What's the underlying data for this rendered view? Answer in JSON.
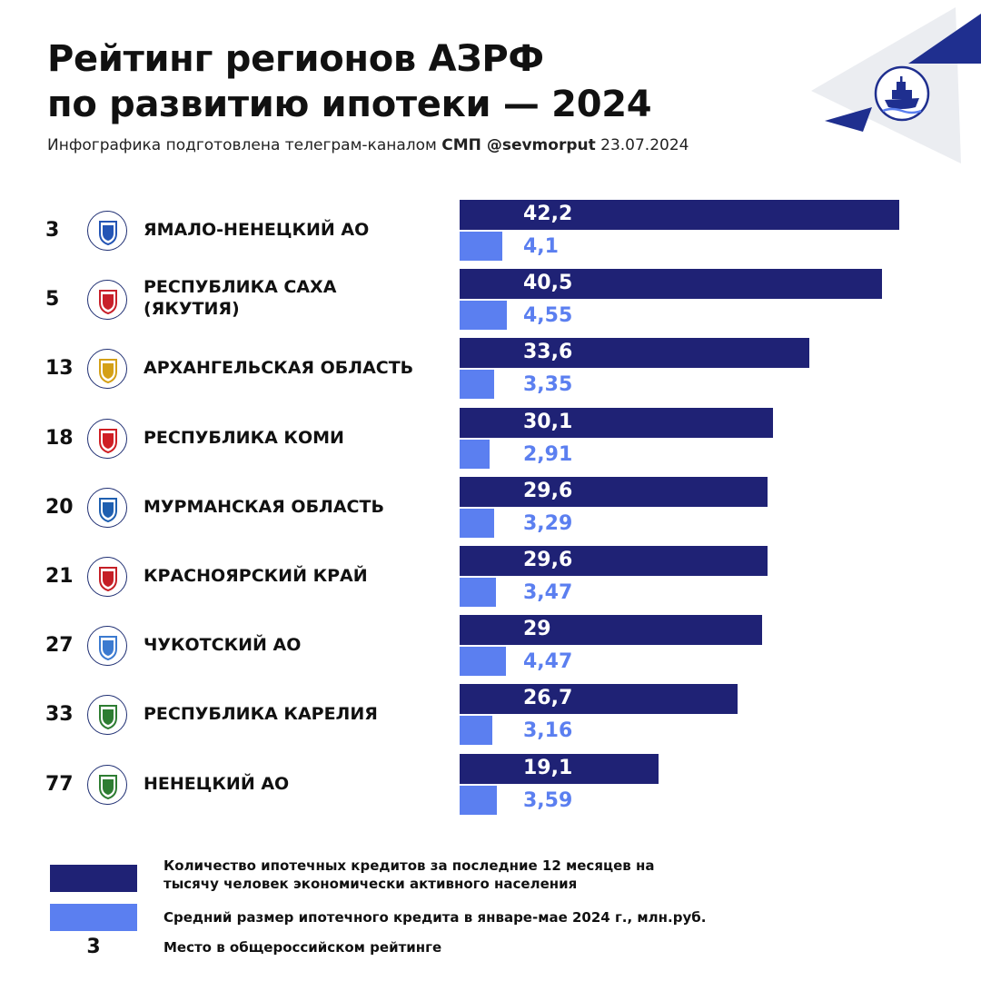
{
  "header": {
    "title_lines": [
      "Рейтинг регионов АЗРФ",
      "по развитию ипотеки — 2024"
    ],
    "subtitle_prefix": "Инфографика подготовлена телеграм-каналом",
    "subtitle_channel": "СМП @sevmorput",
    "subtitle_date": "23.07.2024"
  },
  "logo": {
    "icon": "icebreaker-ship-icon"
  },
  "colors": {
    "dark_bar": "#1f2275",
    "light_bar": "#5b7ff0",
    "accent_triangle": "#1f2f8f",
    "grey_triangle": "#ebedf1"
  },
  "chart_data": {
    "type": "bar",
    "orientation": "horizontal",
    "categories": [
      "ЯМАЛО-НЕНЕЦКИЙ АО",
      "РЕСПУБЛИКА САХА (ЯКУТИЯ)",
      "АРХАНГЕЛЬСКАЯ ОБЛАСТЬ",
      "РЕСПУБЛИКА КОМИ",
      "МУРМАНСКАЯ ОБЛАСТЬ",
      "КРАСНОЯРСКИЙ КРАЙ",
      "ЧУКОТСКИЙ АО",
      "РЕСПУБЛИКА КАРЕЛИЯ",
      "НЕНЕЦКИЙ АО"
    ],
    "category_lines": [
      [
        "ЯМАЛО-НЕНЕЦКИЙ АО"
      ],
      [
        "РЕСПУБЛИКА САХА",
        "(ЯКУТИЯ)"
      ],
      [
        "АРХАНГЕЛЬСКАЯ ОБЛАСТЬ"
      ],
      [
        "РЕСПУБЛИКА КОМИ"
      ],
      [
        "МУРМАНСКАЯ ОБЛАСТЬ"
      ],
      [
        "КРАСНОЯРСКИЙ КРАЙ"
      ],
      [
        "ЧУКОТСКИЙ АО"
      ],
      [
        "РЕСПУБЛИКА КАРЕЛИЯ"
      ],
      [
        "НЕНЕЦКИЙ АО"
      ]
    ],
    "ranks": [
      "3",
      "5",
      "13",
      "18",
      "20",
      "21",
      "27",
      "33",
      "77"
    ],
    "emblem_icons": [
      "yamalo-nenets-emblem-icon",
      "sakha-emblem-icon",
      "arkhangelsk-emblem-icon",
      "komi-emblem-icon",
      "murmansk-emblem-icon",
      "krasnoyarsk-emblem-icon",
      "chukotka-emblem-icon",
      "karelia-emblem-icon",
      "nenets-emblem-icon"
    ],
    "series": [
      {
        "name": "Количество ипотечных кредитов за последние 12 месяцев на тысячу человек экономически активного населения",
        "values": [
          42.2,
          40.5,
          33.6,
          30.1,
          29.6,
          29.6,
          29,
          26.7,
          19.1
        ],
        "labels": [
          "42,2",
          "40,5",
          "33,6",
          "30,1",
          "29,6",
          "29,6",
          "29",
          "26,7",
          "19,1"
        ]
      },
      {
        "name": "Средний размер ипотечного кредита в январе-мае 2024 г., млн.руб.",
        "values": [
          4.1,
          4.55,
          3.35,
          2.91,
          3.29,
          3.47,
          4.47,
          3.16,
          3.59
        ],
        "labels": [
          "4,1",
          "4,55",
          "3,35",
          "2,91",
          "3,29",
          "3,47",
          "4,47",
          "3,16",
          "3,59"
        ]
      }
    ],
    "legend_placement": "bottom",
    "grid": false
  },
  "legend": {
    "item1_lines": [
      "Количество ипотечных кредитов за последние 12 месяцев на",
      "тысячу человек экономически активного населения"
    ],
    "item2": "Средний размер ипотечного кредита в январе-мае 2024 г., млн.руб.",
    "rank_sample": "3",
    "rank_text": "Место в общероссийском рейтинге"
  }
}
